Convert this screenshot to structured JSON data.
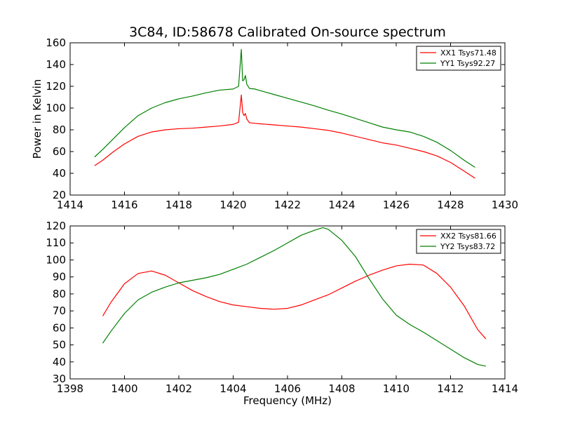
{
  "figure": {
    "title": "3C84, ID:58678 Calibrated On-source spectrum"
  },
  "chart_data": [
    {
      "type": "line",
      "title": "",
      "xlabel": "",
      "ylabel": "Power in Kelvin",
      "xlim": [
        1414,
        1430
      ],
      "ylim": [
        20,
        160
      ],
      "xticks": [
        1414,
        1416,
        1418,
        1420,
        1422,
        1424,
        1426,
        1428,
        1430
      ],
      "yticks": [
        20,
        40,
        60,
        80,
        100,
        120,
        140,
        160
      ],
      "grid": false,
      "legend": "top-right",
      "series": [
        {
          "name": "XX1 Tsys71.48",
          "color": "#ff0000",
          "x": [
            1414.9,
            1415.2,
            1415.6,
            1416.0,
            1416.5,
            1417.0,
            1417.5,
            1418.0,
            1418.5,
            1419.0,
            1419.5,
            1420.0,
            1420.2,
            1420.3,
            1420.35,
            1420.4,
            1420.45,
            1420.5,
            1420.6,
            1420.8,
            1421.0,
            1421.5,
            1422.0,
            1422.5,
            1423.0,
            1423.5,
            1424.0,
            1424.5,
            1425.0,
            1425.5,
            1426.0,
            1426.5,
            1427.0,
            1427.5,
            1428.0,
            1428.5,
            1428.9
          ],
          "y": [
            47,
            52,
            60,
            67,
            74,
            78,
            80,
            81,
            81.5,
            82.5,
            83.5,
            85,
            87,
            112,
            96,
            93,
            95,
            90,
            86.5,
            86,
            85.5,
            84.5,
            83.5,
            82.5,
            81,
            79.5,
            77,
            74,
            71,
            68,
            66,
            63,
            60,
            56,
            50,
            42,
            35.5
          ]
        },
        {
          "name": "YY1 Tsys92.27",
          "color": "#008000",
          "x": [
            1414.9,
            1415.2,
            1415.6,
            1416.0,
            1416.5,
            1417.0,
            1417.5,
            1418.0,
            1418.5,
            1419.0,
            1419.5,
            1420.0,
            1420.2,
            1420.3,
            1420.35,
            1420.4,
            1420.45,
            1420.5,
            1420.6,
            1420.8,
            1421.0,
            1421.5,
            1422.0,
            1422.5,
            1423.0,
            1423.5,
            1424.0,
            1424.5,
            1425.0,
            1425.5,
            1426.0,
            1426.5,
            1427.0,
            1427.5,
            1428.0,
            1428.5,
            1428.9
          ],
          "y": [
            55,
            62,
            72,
            82,
            93,
            100,
            105,
            108.5,
            111,
            114,
            116.5,
            117.5,
            120,
            154,
            125,
            126,
            130,
            122,
            118,
            117.5,
            116,
            112.5,
            109,
            105.5,
            102,
            98,
            94.5,
            90.5,
            86.5,
            82.5,
            80,
            78,
            74,
            68.5,
            61,
            52,
            45.5
          ]
        }
      ]
    },
    {
      "type": "line",
      "title": "",
      "xlabel": "Frequency (MHz)",
      "ylabel": "",
      "xlim": [
        1398,
        1414
      ],
      "ylim": [
        30,
        120
      ],
      "xticks": [
        1398,
        1400,
        1402,
        1404,
        1406,
        1408,
        1410,
        1412,
        1414
      ],
      "yticks": [
        30,
        40,
        50,
        60,
        70,
        80,
        90,
        100,
        110,
        120
      ],
      "grid": false,
      "legend": "top-right",
      "series": [
        {
          "name": "XX2 Tsys81.66",
          "color": "#ff0000",
          "x": [
            1399.2,
            1399.5,
            1400.0,
            1400.5,
            1401.0,
            1401.5,
            1402.0,
            1402.5,
            1403.0,
            1403.5,
            1404.0,
            1404.5,
            1405.0,
            1405.5,
            1406.0,
            1406.5,
            1407.0,
            1407.5,
            1408.0,
            1408.5,
            1409.0,
            1409.5,
            1410.0,
            1410.5,
            1411.0,
            1411.5,
            1412.0,
            1412.5,
            1413.0,
            1413.3
          ],
          "y": [
            67,
            75,
            86,
            92,
            93.5,
            91,
            86.5,
            82,
            78.5,
            75.5,
            73.5,
            72.5,
            71.5,
            71,
            71.5,
            73.5,
            76.5,
            79.5,
            83.5,
            87.5,
            91,
            94,
            96.5,
            97.5,
            97,
            92,
            84,
            73,
            59,
            53.5
          ]
        },
        {
          "name": "YY2 Tsys83.72",
          "color": "#008000",
          "x": [
            1399.2,
            1399.5,
            1400.0,
            1400.5,
            1401.0,
            1401.5,
            1402.0,
            1402.5,
            1403.0,
            1403.5,
            1404.0,
            1404.5,
            1405.0,
            1405.5,
            1406.0,
            1406.5,
            1407.0,
            1407.3,
            1407.5,
            1408.0,
            1408.5,
            1409.0,
            1409.5,
            1410.0,
            1410.5,
            1411.0,
            1411.5,
            1412.0,
            1412.5,
            1413.0,
            1413.3
          ],
          "y": [
            51,
            58,
            68.5,
            76.5,
            81,
            84,
            86.5,
            88,
            89.5,
            91.5,
            94.5,
            97.5,
            101.5,
            105.5,
            110,
            114.5,
            117.5,
            119,
            118,
            111.5,
            102,
            89,
            77,
            67.5,
            62,
            57.5,
            52.5,
            47.5,
            42.5,
            38.5,
            37.5
          ]
        }
      ]
    }
  ]
}
